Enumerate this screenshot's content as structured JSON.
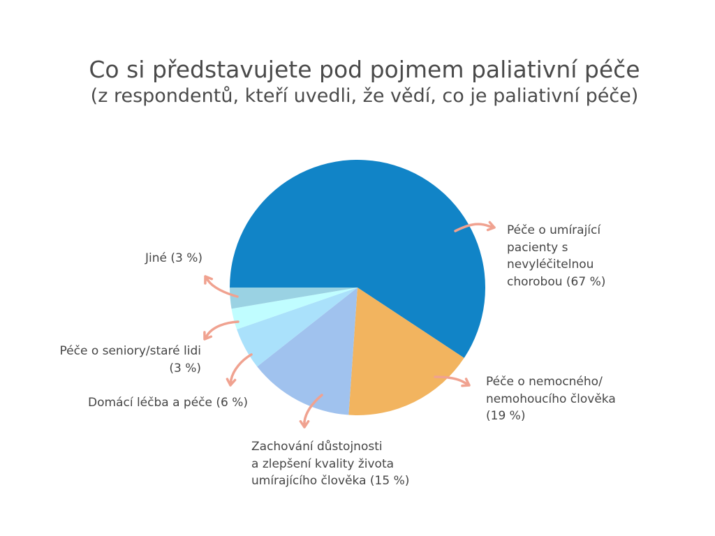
{
  "chart_data": {
    "type": "pie",
    "title": "Co si představujete pod pojmem paliativní péče",
    "subtitle": "(z respondentů, kteří uvedli, že vědí, co je paliativní péče)",
    "slices": [
      {
        "label": "Péče o umírající pacienty s nevyléčitelnou chorobou",
        "display": " Péče o umírající\npacienty s\nnevyléčitelnou\nchorobou (67 %)",
        "value": 67,
        "color": "#1184c7"
      },
      {
        "label": "Péče o nemocného/nemohoucího člověka",
        "display": "Péče o nemocného/\nnemohoucího člověka\n(19 %)",
        "value": 19,
        "color": "#f2b45f"
      },
      {
        "label": "Zachování důstojnosti a zlepšení kvality života umírajícího člověka",
        "display": "Zachování důstojnosti\na zlepšení kvality života\numírajícího člověka (15 %)",
        "value": 15,
        "color": "#a0c2ee"
      },
      {
        "label": "Domácí léčba a péče",
        "display": "Domácí léčba a péče (6 %)",
        "value": 6,
        "color": "#aae1fb"
      },
      {
        "label": "Péče o seniory/staré lidi",
        "display": "Péče o seniory/staré lidi\n(3 %)",
        "value": 3,
        "color": "#c0fdff"
      },
      {
        "label": "Jiné",
        "display": "Jiné (3 %)",
        "value": 3,
        "color": "#9ad2e3"
      }
    ],
    "arrow_color": "#f0a290",
    "legend": "none"
  }
}
